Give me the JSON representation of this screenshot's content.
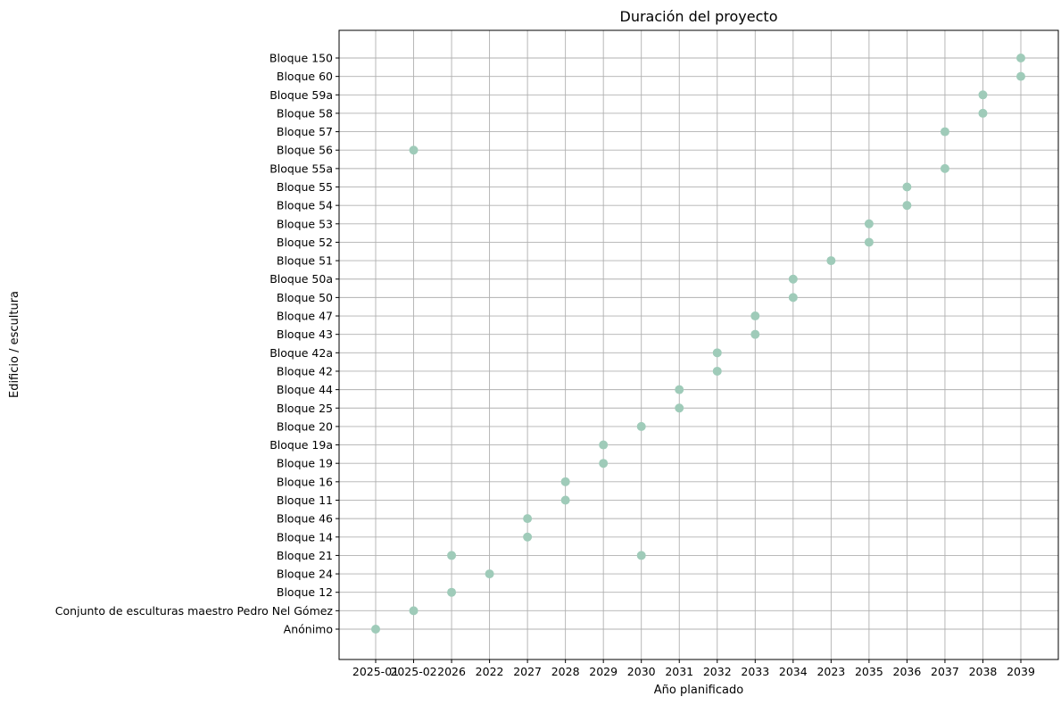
{
  "chart_data": {
    "type": "scatter",
    "title": "Duración del proyecto",
    "xlabel": "Año planificado",
    "ylabel": "Edificio / escultura",
    "grid": true,
    "marker_color": "#9fcbb9",
    "x_categories": [
      "2025-01",
      "2025-02",
      "2026",
      "2022",
      "2027",
      "2028",
      "2029",
      "2030",
      "2031",
      "2032",
      "2033",
      "2034",
      "2023",
      "2035",
      "2036",
      "2037",
      "2038",
      "2039"
    ],
    "y_categories": [
      "Anónimo",
      "Conjunto de esculturas maestro Pedro Nel Gómez",
      "Bloque 12",
      "Bloque 24",
      "Bloque 21",
      "Bloque 14",
      "Bloque 46",
      "Bloque 11",
      "Bloque 16",
      "Bloque 19",
      "Bloque 19a",
      "Bloque 20",
      "Bloque 25",
      "Bloque 44",
      "Bloque 42",
      "Bloque 42a",
      "Bloque 43",
      "Bloque 47",
      "Bloque 50",
      "Bloque 50a",
      "Bloque 51",
      "Bloque 52",
      "Bloque 53",
      "Bloque 54",
      "Bloque 55",
      "Bloque 55a",
      "Bloque 56",
      "Bloque 57",
      "Bloque 58",
      "Bloque 59a",
      "Bloque 60",
      "Bloque 150"
    ],
    "points": [
      {
        "x": "2025-01",
        "y": "Anónimo"
      },
      {
        "x": "2025-02",
        "y": "Conjunto de esculturas maestro Pedro Nel Gómez"
      },
      {
        "x": "2026",
        "y": "Bloque 12"
      },
      {
        "x": "2022",
        "y": "Bloque 24"
      },
      {
        "x": "2026",
        "y": "Bloque 21"
      },
      {
        "x": "2030",
        "y": "Bloque 21"
      },
      {
        "x": "2027",
        "y": "Bloque 14"
      },
      {
        "x": "2027",
        "y": "Bloque 46"
      },
      {
        "x": "2028",
        "y": "Bloque 11"
      },
      {
        "x": "2028",
        "y": "Bloque 16"
      },
      {
        "x": "2029",
        "y": "Bloque 19"
      },
      {
        "x": "2029",
        "y": "Bloque 19a"
      },
      {
        "x": "2030",
        "y": "Bloque 20"
      },
      {
        "x": "2031",
        "y": "Bloque 25"
      },
      {
        "x": "2031",
        "y": "Bloque 44"
      },
      {
        "x": "2032",
        "y": "Bloque 42"
      },
      {
        "x": "2032",
        "y": "Bloque 42a"
      },
      {
        "x": "2033",
        "y": "Bloque 43"
      },
      {
        "x": "2033",
        "y": "Bloque 47"
      },
      {
        "x": "2034",
        "y": "Bloque 50"
      },
      {
        "x": "2034",
        "y": "Bloque 50a"
      },
      {
        "x": "2023",
        "y": "Bloque 51"
      },
      {
        "x": "2035",
        "y": "Bloque 52"
      },
      {
        "x": "2035",
        "y": "Bloque 53"
      },
      {
        "x": "2036",
        "y": "Bloque 54"
      },
      {
        "x": "2036",
        "y": "Bloque 55"
      },
      {
        "x": "2037",
        "y": "Bloque 55a"
      },
      {
        "x": "2025-02",
        "y": "Bloque 56"
      },
      {
        "x": "2037",
        "y": "Bloque 57"
      },
      {
        "x": "2038",
        "y": "Bloque 58"
      },
      {
        "x": "2038",
        "y": "Bloque 59a"
      },
      {
        "x": "2039",
        "y": "Bloque 60"
      },
      {
        "x": "2039",
        "y": "Bloque 150"
      }
    ]
  }
}
